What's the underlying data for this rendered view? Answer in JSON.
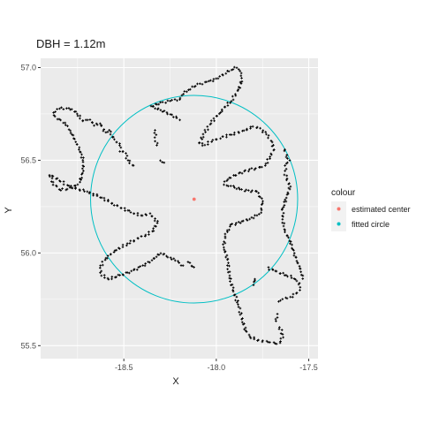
{
  "chart_data": {
    "type": "scatter",
    "title": "DBH = 1.12m",
    "xlabel": "X",
    "ylabel": "Y",
    "xlim": [
      -18.95,
      -17.45
    ],
    "ylim": [
      55.43,
      57.05
    ],
    "x_ticks": [
      -18.5,
      -18.0,
      -17.5
    ],
    "x_tick_labels": [
      "-18.5",
      "-18.0",
      "-17.5"
    ],
    "y_ticks": [
      55.5,
      56.0,
      56.5,
      57.0
    ],
    "y_tick_labels": [
      "55.5",
      "56.0",
      "56.5",
      "57.0"
    ],
    "grid": true,
    "panel_color": "#ebebeb",
    "legend": {
      "title": "colour",
      "position": "right",
      "entries": [
        {
          "label": "estimated center",
          "color": "#F8766D"
        },
        {
          "label": "fitted circle",
          "color": "#00BFC4"
        }
      ]
    },
    "estimated_center": {
      "x": -18.12,
      "y": 56.29
    },
    "fitted_circle": {
      "cx": -18.12,
      "cy": 56.29,
      "r": 0.56
    },
    "point_color": "#000000",
    "point_paths": [
      [
        [
          -18.88,
          56.76
        ],
        [
          -18.85,
          56.78
        ],
        [
          -18.8,
          56.78
        ],
        [
          -18.76,
          56.76
        ],
        [
          -18.72,
          56.71
        ],
        [
          -18.68,
          56.72
        ],
        [
          -18.66,
          56.69
        ],
        [
          -18.63,
          56.7
        ],
        [
          -18.6,
          56.65
        ],
        [
          -18.58,
          56.66
        ],
        [
          -18.55,
          56.61
        ],
        [
          -18.52,
          56.58
        ],
        [
          -18.52,
          56.55
        ],
        [
          -18.49,
          56.54
        ],
        [
          -18.48,
          56.5
        ],
        [
          -18.45,
          56.47
        ]
      ],
      [
        [
          -18.88,
          56.74
        ],
        [
          -18.82,
          56.7
        ],
        [
          -18.79,
          56.66
        ],
        [
          -18.77,
          56.62
        ],
        [
          -18.74,
          56.56
        ],
        [
          -18.72,
          56.5
        ],
        [
          -18.72,
          56.44
        ],
        [
          -18.74,
          56.38
        ],
        [
          -18.78,
          56.35
        ],
        [
          -18.84,
          56.34
        ],
        [
          -18.88,
          56.37
        ],
        [
          -18.9,
          56.42
        ],
        [
          -18.86,
          56.4
        ],
        [
          -18.8,
          56.36
        ],
        [
          -18.7,
          56.33
        ],
        [
          -18.62,
          56.3
        ],
        [
          -18.55,
          56.26
        ],
        [
          -18.46,
          56.22
        ],
        [
          -18.4,
          56.2
        ],
        [
          -18.36,
          56.21
        ],
        [
          -18.32,
          56.17
        ],
        [
          -18.34,
          56.12
        ],
        [
          -18.38,
          56.1
        ],
        [
          -18.42,
          56.08
        ],
        [
          -18.48,
          56.05
        ],
        [
          -18.55,
          56.01
        ],
        [
          -18.6,
          55.97
        ],
        [
          -18.63,
          55.92
        ],
        [
          -18.62,
          55.88
        ],
        [
          -18.58,
          55.86
        ],
        [
          -18.52,
          55.88
        ],
        [
          -18.46,
          55.9
        ],
        [
          -18.4,
          55.93
        ],
        [
          -18.35,
          55.96
        ],
        [
          -18.3,
          56.0
        ],
        [
          -18.26,
          55.98
        ],
        [
          -18.22,
          55.96
        ],
        [
          -18.18,
          55.93
        ]
      ],
      [
        [
          -18.2,
          56.72
        ],
        [
          -18.25,
          56.75
        ],
        [
          -18.3,
          56.77
        ],
        [
          -18.35,
          56.79
        ],
        [
          -18.3,
          56.81
        ],
        [
          -18.25,
          56.82
        ],
        [
          -18.2,
          56.83
        ],
        [
          -18.18,
          56.86
        ],
        [
          -18.15,
          56.88
        ],
        [
          -18.1,
          56.91
        ],
        [
          -18.05,
          56.92
        ],
        [
          -18.0,
          56.94
        ],
        [
          -17.95,
          56.97
        ],
        [
          -17.92,
          56.99
        ],
        [
          -17.89,
          57.0
        ],
        [
          -17.87,
          56.98
        ],
        [
          -17.86,
          56.94
        ],
        [
          -17.88,
          56.88
        ],
        [
          -17.92,
          56.82
        ],
        [
          -17.98,
          56.76
        ],
        [
          -18.03,
          56.7
        ],
        [
          -18.07,
          56.64
        ],
        [
          -18.09,
          56.59
        ],
        [
          -18.06,
          56.58
        ],
        [
          -18.02,
          56.61
        ],
        [
          -17.98,
          56.62
        ],
        [
          -17.92,
          56.64
        ],
        [
          -17.85,
          56.66
        ],
        [
          -17.8,
          56.68
        ],
        [
          -17.76,
          56.67
        ],
        [
          -17.73,
          56.64
        ],
        [
          -17.7,
          56.6
        ],
        [
          -17.69,
          56.56
        ],
        [
          -17.71,
          56.52
        ],
        [
          -17.73,
          56.48
        ],
        [
          -17.76,
          56.46
        ],
        [
          -17.82,
          56.45
        ],
        [
          -17.9,
          56.42
        ],
        [
          -17.94,
          56.4
        ],
        [
          -17.96,
          56.37
        ],
        [
          -17.92,
          56.36
        ],
        [
          -17.86,
          56.34
        ],
        [
          -17.78,
          56.33
        ],
        [
          -17.75,
          56.28
        ],
        [
          -17.76,
          56.22
        ],
        [
          -17.8,
          56.19
        ],
        [
          -17.86,
          56.17
        ],
        [
          -17.92,
          56.15
        ],
        [
          -17.95,
          56.1
        ],
        [
          -17.96,
          56.03
        ],
        [
          -17.94,
          55.97
        ],
        [
          -17.93,
          55.88
        ],
        [
          -17.91,
          55.8
        ],
        [
          -17.88,
          55.72
        ],
        [
          -17.86,
          55.64
        ],
        [
          -17.84,
          55.58
        ],
        [
          -17.82,
          55.55
        ],
        [
          -17.78,
          55.53
        ],
        [
          -17.72,
          55.52
        ],
        [
          -17.68,
          55.51
        ],
        [
          -17.65,
          55.52
        ],
        [
          -17.64,
          55.56
        ],
        [
          -17.66,
          55.6
        ]
      ],
      [
        [
          -17.72,
          55.92
        ],
        [
          -17.68,
          55.9
        ],
        [
          -17.62,
          55.88
        ],
        [
          -17.57,
          55.86
        ],
        [
          -17.55,
          55.84
        ],
        [
          -17.55,
          55.8
        ],
        [
          -17.57,
          55.78
        ],
        [
          -17.6,
          55.76
        ],
        [
          -17.64,
          55.75
        ],
        [
          -17.66,
          55.74
        ]
      ],
      [
        [
          -17.63,
          56.56
        ],
        [
          -17.62,
          56.52
        ],
        [
          -17.6,
          56.5
        ],
        [
          -17.62,
          56.48
        ],
        [
          -17.63,
          56.44
        ],
        [
          -17.62,
          56.4
        ],
        [
          -17.6,
          56.36
        ],
        [
          -17.62,
          56.3
        ],
        [
          -17.64,
          56.24
        ],
        [
          -17.64,
          56.18
        ],
        [
          -17.63,
          56.12
        ],
        [
          -17.6,
          56.06
        ],
        [
          -17.58,
          56.0
        ],
        [
          -17.56,
          55.95
        ],
        [
          -17.54,
          55.9
        ],
        [
          -17.53,
          55.86
        ]
      ],
      [
        [
          -18.33,
          56.66
        ],
        [
          -18.33,
          56.62
        ],
        [
          -18.32,
          56.58
        ]
      ],
      [
        [
          -18.3,
          56.5
        ],
        [
          -18.28,
          56.49
        ]
      ],
      [
        [
          -18.15,
          55.95
        ],
        [
          -18.12,
          55.92
        ]
      ],
      [
        [
          -17.79,
          55.86
        ],
        [
          -17.8,
          55.83
        ]
      ],
      [
        [
          -17.67,
          55.67
        ],
        [
          -17.68,
          55.63
        ]
      ]
    ]
  }
}
